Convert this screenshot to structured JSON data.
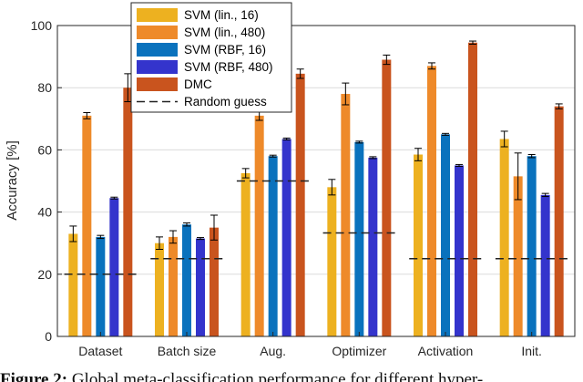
{
  "chart_data": {
    "type": "bar",
    "categories": [
      "Dataset",
      "Batch size",
      "Aug.",
      "Optimizer",
      "Activation",
      "Init."
    ],
    "ylabel": "Accuracy [%]",
    "xlabel": "",
    "ylim": [
      0,
      100
    ],
    "yticks": [
      0,
      20,
      40,
      60,
      80,
      100
    ],
    "grid": true,
    "legend_position": "top-center",
    "series": [
      {
        "name": "SVM (lin., 16)",
        "color": "#EDB120",
        "values": [
          33.0,
          30.0,
          52.5,
          48.0,
          58.5,
          63.5
        ],
        "errors": [
          2.5,
          2.0,
          1.5,
          2.5,
          2.0,
          2.5
        ]
      },
      {
        "name": "SVM (lin., 480)",
        "color": "#EE8A2A",
        "values": [
          71.0,
          32.0,
          71.0,
          78.0,
          87.0,
          51.5
        ],
        "errors": [
          1.0,
          2.0,
          1.5,
          3.5,
          1.0,
          7.5
        ]
      },
      {
        "name": "SVM (RBF, 16)",
        "color": "#0A72BD",
        "values": [
          32.0,
          36.0,
          58.0,
          62.5,
          65.0,
          58.0
        ],
        "errors": [
          0.5,
          0.5,
          0.3,
          0.3,
          0.3,
          0.5
        ]
      },
      {
        "name": "SVM (RBF, 480)",
        "color": "#3434CC",
        "values": [
          44.5,
          31.5,
          63.5,
          57.5,
          55.0,
          45.5
        ],
        "errors": [
          0.3,
          0.3,
          0.3,
          0.3,
          0.3,
          0.5
        ]
      },
      {
        "name": "DMC",
        "color": "#C9541E",
        "values": [
          80.0,
          35.0,
          84.5,
          89.0,
          94.5,
          74.0
        ],
        "errors": [
          4.5,
          4.0,
          1.5,
          1.5,
          0.5,
          0.8
        ]
      }
    ],
    "random_guess": {
      "name": "Random guess",
      "values": [
        20,
        25,
        50,
        33.3,
        25,
        25
      ]
    }
  },
  "caption": {
    "prefix": "Figure 2:",
    "text": " Global meta-classification performance for different hyper-"
  }
}
